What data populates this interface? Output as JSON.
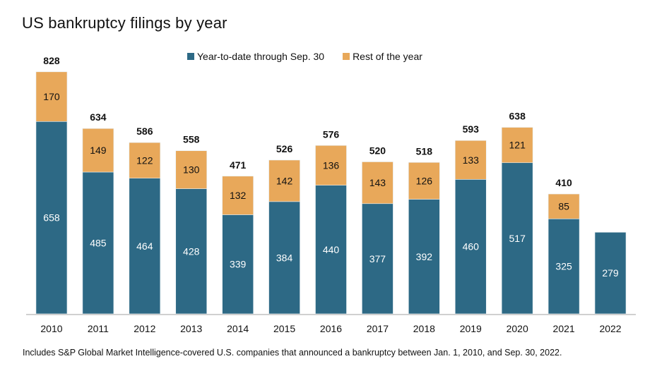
{
  "chart_data": {
    "type": "bar",
    "stacked": true,
    "title": "US bankruptcy filings by year",
    "xlabel": "",
    "ylabel": "",
    "ylim": [
      0,
      830
    ],
    "grid": false,
    "legend_position": "top-center",
    "categories": [
      "2010",
      "2011",
      "2012",
      "2013",
      "2014",
      "2015",
      "2016",
      "2017",
      "2018",
      "2019",
      "2020",
      "2021",
      "2022"
    ],
    "series": [
      {
        "name": "Year-to-date through Sep. 30",
        "color": "#2d6985",
        "label_color": "#ffffff",
        "values": [
          658,
          485,
          464,
          428,
          339,
          384,
          440,
          377,
          392,
          460,
          517,
          325,
          279
        ]
      },
      {
        "name": "Rest of the year",
        "color": "#e8a85a",
        "label_color": "#111111",
        "values": [
          170,
          149,
          122,
          130,
          132,
          142,
          136,
          143,
          126,
          133,
          121,
          85,
          null
        ]
      }
    ],
    "totals": [
      828,
      634,
      586,
      558,
      471,
      526,
      576,
      520,
      518,
      593,
      638,
      410,
      null
    ],
    "footnote": "Includes S&P Global Market Intelligence-covered U.S. companies that announced a bankruptcy between Jan. 1, 2010, and Sep. 30, 2022."
  }
}
